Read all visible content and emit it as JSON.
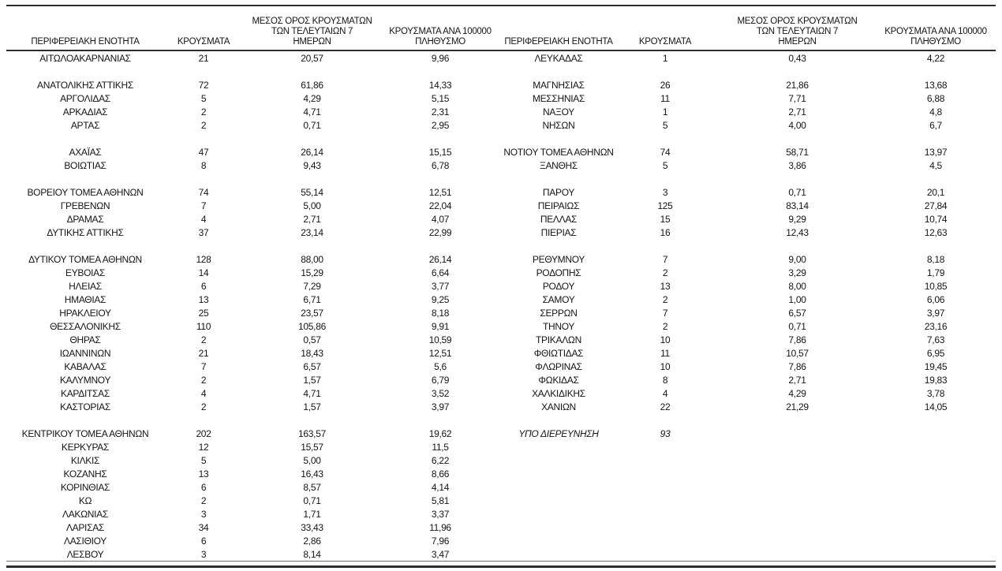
{
  "headers": {
    "region": "ΠΕΡΙΦΕΡΕΙΑΚΗ ΕΝΟΤΗΤΑ",
    "cases": "ΚΡΟΥΣΜΑΤΑ",
    "avg7_lines": [
      "ΜΕΣΟΣ ΟΡΟΣ ΚΡΟΥΣΜΑΤΩΝ",
      "ΤΩΝ ΤΕΛΕΥΤΑΙΩΝ 7",
      "ΗΜΕΡΩΝ"
    ],
    "per100k_lines": [
      "ΚΡΟΥΣΜΑΤΑ ΑΝΑ 100000",
      "ΠΛΗΘΥΣΜΟ"
    ]
  },
  "rows": [
    {
      "left": [
        "ΑΙΤΩΛΟΑΚΑΡΝΑΝΙΑΣ",
        "21",
        "20,57",
        "9,96"
      ],
      "right": [
        "ΛΕΥΚΑΔΑΣ",
        "1",
        "0,43",
        "4,22"
      ]
    },
    {
      "blank": true
    },
    {
      "left": [
        "ΑΝΑΤΟΛΙΚΗΣ ΑΤΤΙΚΗΣ",
        "72",
        "61,86",
        "14,33"
      ],
      "right": [
        "ΜΑΓΝΗΣΙΑΣ",
        "26",
        "21,86",
        "13,68"
      ]
    },
    {
      "left": [
        "ΑΡΓΟΛΙΔΑΣ",
        "5",
        "4,29",
        "5,15"
      ],
      "right": [
        "ΜΕΣΣΗΝΙΑΣ",
        "11",
        "7,71",
        "6,88"
      ]
    },
    {
      "left": [
        "ΑΡΚΑΔΙΑΣ",
        "2",
        "4,71",
        "2,31"
      ],
      "right": [
        "ΝΑΞΟΥ",
        "1",
        "2,71",
        "4,8"
      ]
    },
    {
      "left": [
        "ΑΡΤΑΣ",
        "2",
        "0,71",
        "2,95"
      ],
      "right": [
        "ΝΗΣΩΝ",
        "5",
        "4,00",
        "6,7"
      ]
    },
    {
      "blank": true
    },
    {
      "left": [
        "ΑΧΑΪΑΣ",
        "47",
        "26,14",
        "15,15"
      ],
      "right": [
        "ΝΟΤΙΟΥ ΤΟΜΕΑ ΑΘΗΝΩΝ",
        "74",
        "58,71",
        "13,97"
      ]
    },
    {
      "left": [
        "ΒΟΙΩΤΙΑΣ",
        "8",
        "9,43",
        "6,78"
      ],
      "right": [
        "ΞΑΝΘΗΣ",
        "5",
        "3,86",
        "4,5"
      ]
    },
    {
      "blank": true
    },
    {
      "left": [
        "ΒΟΡΕΙΟΥ ΤΟΜΕΑ ΑΘΗΝΩΝ",
        "74",
        "55,14",
        "12,51"
      ],
      "right": [
        "ΠΑΡΟΥ",
        "3",
        "0,71",
        "20,1"
      ]
    },
    {
      "left": [
        "ΓΡΕΒΕΝΩΝ",
        "7",
        "5,00",
        "22,04"
      ],
      "right": [
        "ΠΕΙΡΑΙΩΣ",
        "125",
        "83,14",
        "27,84"
      ]
    },
    {
      "left": [
        "ΔΡΑΜΑΣ",
        "4",
        "2,71",
        "4,07"
      ],
      "right": [
        "ΠΕΛΛΑΣ",
        "15",
        "9,29",
        "10,74"
      ]
    },
    {
      "left": [
        "ΔΥΤΙΚΗΣ ΑΤΤΙΚΗΣ",
        "37",
        "23,14",
        "22,99"
      ],
      "right": [
        "ΠΙΕΡΙΑΣ",
        "16",
        "12,43",
        "12,63"
      ]
    },
    {
      "blank": true
    },
    {
      "left": [
        "ΔΥΤΙΚΟΥ ΤΟΜΕΑ ΑΘΗΝΩΝ",
        "128",
        "88,00",
        "26,14"
      ],
      "right": [
        "ΡΕΘΥΜΝΟΥ",
        "7",
        "9,00",
        "8,18"
      ]
    },
    {
      "left": [
        "ΕΥΒΟΙΑΣ",
        "14",
        "15,29",
        "6,64"
      ],
      "right": [
        "ΡΟΔΟΠΗΣ",
        "2",
        "3,29",
        "1,79"
      ]
    },
    {
      "left": [
        "ΗΛΕΙΑΣ",
        "6",
        "7,29",
        "3,77"
      ],
      "right": [
        "ΡΟΔΟΥ",
        "13",
        "8,00",
        "10,85"
      ]
    },
    {
      "left": [
        "ΗΜΑΘΙΑΣ",
        "13",
        "6,71",
        "9,25"
      ],
      "right": [
        "ΣΑΜΟΥ",
        "2",
        "1,00",
        "6,06"
      ]
    },
    {
      "left": [
        "ΗΡΑΚΛΕΙΟΥ",
        "25",
        "23,57",
        "8,18"
      ],
      "right": [
        "ΣΕΡΡΩΝ",
        "7",
        "6,57",
        "3,97"
      ]
    },
    {
      "left": [
        "ΘΕΣΣΑΛΟΝΙΚΗΣ",
        "110",
        "105,86",
        "9,91"
      ],
      "right": [
        "ΤΗΝΟΥ",
        "2",
        "0,71",
        "23,16"
      ]
    },
    {
      "left": [
        "ΘΗΡΑΣ",
        "2",
        "0,57",
        "10,59"
      ],
      "right": [
        "ΤΡΙΚΑΛΩΝ",
        "10",
        "7,86",
        "7,63"
      ]
    },
    {
      "left": [
        "ΙΩΑΝΝΙΝΩΝ",
        "21",
        "18,43",
        "12,51"
      ],
      "right": [
        "ΦΘΙΩΤΙΔΑΣ",
        "11",
        "10,57",
        "6,95"
      ]
    },
    {
      "left": [
        "ΚΑΒΑΛΑΣ",
        "7",
        "6,57",
        "5,6"
      ],
      "right": [
        "ΦΛΩΡΙΝΑΣ",
        "10",
        "7,86",
        "19,45"
      ]
    },
    {
      "left": [
        "ΚΑΛΥΜΝΟΥ",
        "2",
        "1,57",
        "6,79"
      ],
      "right": [
        "ΦΩΚΙΔΑΣ",
        "8",
        "2,71",
        "19,83"
      ]
    },
    {
      "left": [
        "ΚΑΡΔΙΤΣΑΣ",
        "4",
        "4,71",
        "3,52"
      ],
      "right": [
        "ΧΑΛΚΙΔΙΚΗΣ",
        "4",
        "4,29",
        "3,78"
      ]
    },
    {
      "left": [
        "ΚΑΣΤΟΡΙΑΣ",
        "2",
        "1,57",
        "3,97"
      ],
      "right": [
        "ΧΑΝΙΩΝ",
        "22",
        "21,29",
        "14,05"
      ]
    },
    {
      "blank": true
    },
    {
      "left": [
        "ΚΕΝΤΡΙΚΟΥ ΤΟΜΕΑ ΑΘΗΝΩΝ",
        "202",
        "163,57",
        "19,62"
      ],
      "right": [
        "ΥΠΟ ΔΙΕΡΕΥΝΗΣΗ",
        "93",
        "",
        ""
      ],
      "right_italic": true
    },
    {
      "left": [
        "ΚΕΡΚΥΡΑΣ",
        "12",
        "15,57",
        "11,5"
      ]
    },
    {
      "left": [
        "ΚΙΛΚΙΣ",
        "5",
        "5,00",
        "6,22"
      ]
    },
    {
      "left": [
        "ΚΟΖΑΝΗΣ",
        "13",
        "16,43",
        "8,66"
      ]
    },
    {
      "left": [
        "ΚΟΡΙΝΘΙΑΣ",
        "6",
        "8,57",
        "4,14"
      ]
    },
    {
      "left": [
        "ΚΩ",
        "2",
        "0,71",
        "5,81"
      ]
    },
    {
      "left": [
        "ΛΑΚΩΝΙΑΣ",
        "3",
        "1,71",
        "3,37"
      ]
    },
    {
      "left": [
        "ΛΑΡΙΣΑΣ",
        "34",
        "33,43",
        "11,96"
      ]
    },
    {
      "left": [
        "ΛΑΣΙΘΙΟΥ",
        "6",
        "2,86",
        "7,96"
      ]
    },
    {
      "left": [
        "ΛΕΣΒΟΥ",
        "3",
        "8,14",
        "3,47"
      ]
    }
  ]
}
